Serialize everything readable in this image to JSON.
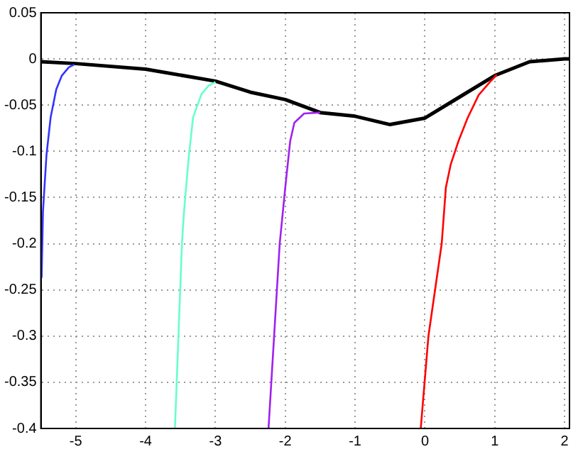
{
  "chart_data": {
    "type": "line",
    "xlim": [
      -5.5,
      2.07
    ],
    "ylim": [
      -0.4,
      0.05
    ],
    "xticks": [
      -5,
      -4,
      -3,
      -2,
      -1,
      0,
      1,
      2
    ],
    "yticks": [
      -0.4,
      -0.35,
      -0.3,
      -0.25,
      -0.2,
      -0.15,
      -0.1,
      -0.05,
      0,
      0.05
    ],
    "grid": true,
    "marker": "none",
    "line_style": "solid",
    "series": [
      {
        "color": "#3333ff",
        "x": [
          -5.49,
          -5.47,
          -5.42,
          -5.36,
          -5.28,
          -5.2,
          -5.1,
          -5.02
        ],
        "values": [
          -0.237,
          -0.165,
          -0.104,
          -0.063,
          -0.033,
          -0.018,
          -0.009,
          -0.006
        ]
      },
      {
        "color": "#66ffcc",
        "x": [
          -3.58,
          -3.48,
          -3.45,
          -3.38,
          -3.32,
          -3.2,
          -3.1,
          -3.0
        ],
        "values": [
          -0.4,
          -0.2,
          -0.165,
          -0.104,
          -0.063,
          -0.038,
          -0.029,
          -0.025
        ]
      },
      {
        "color": "#a020f0",
        "x": [
          -2.24,
          -2.08,
          -2.0,
          -1.93,
          -1.87,
          -1.73,
          -1.5
        ],
        "values": [
          -0.4,
          -0.2,
          -0.139,
          -0.089,
          -0.069,
          -0.059,
          -0.058
        ]
      },
      {
        "color": "#ff0000",
        "x": [
          -0.06,
          0.05,
          0.24,
          0.3,
          0.37,
          0.48,
          0.61,
          0.77,
          0.93,
          1.03
        ],
        "values": [
          -0.4,
          -0.3,
          -0.2,
          -0.139,
          -0.114,
          -0.089,
          -0.064,
          -0.039,
          -0.025,
          -0.017
        ]
      },
      {
        "color": "#000000",
        "x": [
          -5.5,
          -5,
          -4,
          -3,
          -2.5,
          -2,
          -1.5,
          -1,
          -0.5,
          0,
          0.5,
          1,
          1.5,
          2,
          2.07
        ],
        "values": [
          -0.003,
          -0.005,
          -0.011,
          -0.024,
          -0.036,
          -0.044,
          -0.058,
          -0.062,
          -0.071,
          -0.064,
          -0.041,
          -0.018,
          -0.003,
          0,
          0
        ]
      }
    ]
  }
}
